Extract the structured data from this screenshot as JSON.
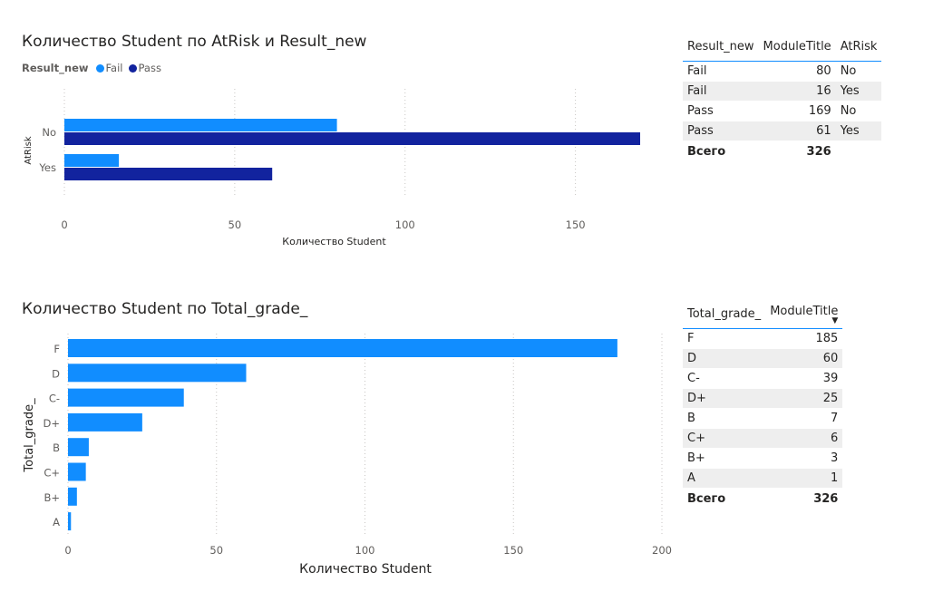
{
  "chart1": {
    "title": "Количество Student по AtRisk и Result_new",
    "legend_title": "Result_new",
    "xlabel": "Количество Student",
    "ylabel": "AtRisk"
  },
  "chart2": {
    "title": "Количество Student по Total_grade_",
    "xlabel": "Количество Student",
    "ylabel": "Total_grade_"
  },
  "chart_data": [
    {
      "type": "bar",
      "orientation": "horizontal",
      "title": "Количество Student по AtRisk и Result_new",
      "xlabel": "Количество Student",
      "ylabel": "AtRisk",
      "categories": [
        "No",
        "Yes"
      ],
      "series": [
        {
          "name": "Fail",
          "color": "#118dff",
          "values": [
            80,
            16
          ]
        },
        {
          "name": "Pass",
          "color": "#12239e",
          "values": [
            169,
            61
          ]
        }
      ],
      "xticks": [
        0,
        50,
        100,
        150
      ],
      "xlim": [
        0,
        169
      ],
      "grid": true,
      "legend": "top-left"
    },
    {
      "type": "bar",
      "orientation": "horizontal",
      "title": "Количество Student по Total_grade_",
      "xlabel": "Количество Student",
      "ylabel": "Total_grade_",
      "categories": [
        "F",
        "D",
        "C-",
        "D+",
        "B",
        "C+",
        "B+",
        "A"
      ],
      "values": [
        185,
        60,
        39,
        25,
        7,
        6,
        3,
        1
      ],
      "color": "#118dff",
      "xticks": [
        0,
        50,
        100,
        150,
        200
      ],
      "xlim": [
        0,
        200
      ],
      "grid": true
    }
  ],
  "table1": {
    "headers": [
      "Result_new",
      "ModuleTitle",
      "AtRisk"
    ],
    "rows": [
      [
        "Fail",
        "80",
        "No"
      ],
      [
        "Fail",
        "16",
        "Yes"
      ],
      [
        "Pass",
        "169",
        "No"
      ],
      [
        "Pass",
        "61",
        "Yes"
      ]
    ],
    "total_label": "Всего",
    "total_value": "326"
  },
  "table2": {
    "headers": [
      "Total_grade_",
      "ModuleTitle"
    ],
    "rows": [
      [
        "F",
        "185"
      ],
      [
        "D",
        "60"
      ],
      [
        "C-",
        "39"
      ],
      [
        "D+",
        "25"
      ],
      [
        "B",
        "7"
      ],
      [
        "C+",
        "6"
      ],
      [
        "B+",
        "3"
      ],
      [
        "A",
        "1"
      ]
    ],
    "total_label": "Всего",
    "total_value": "326"
  }
}
